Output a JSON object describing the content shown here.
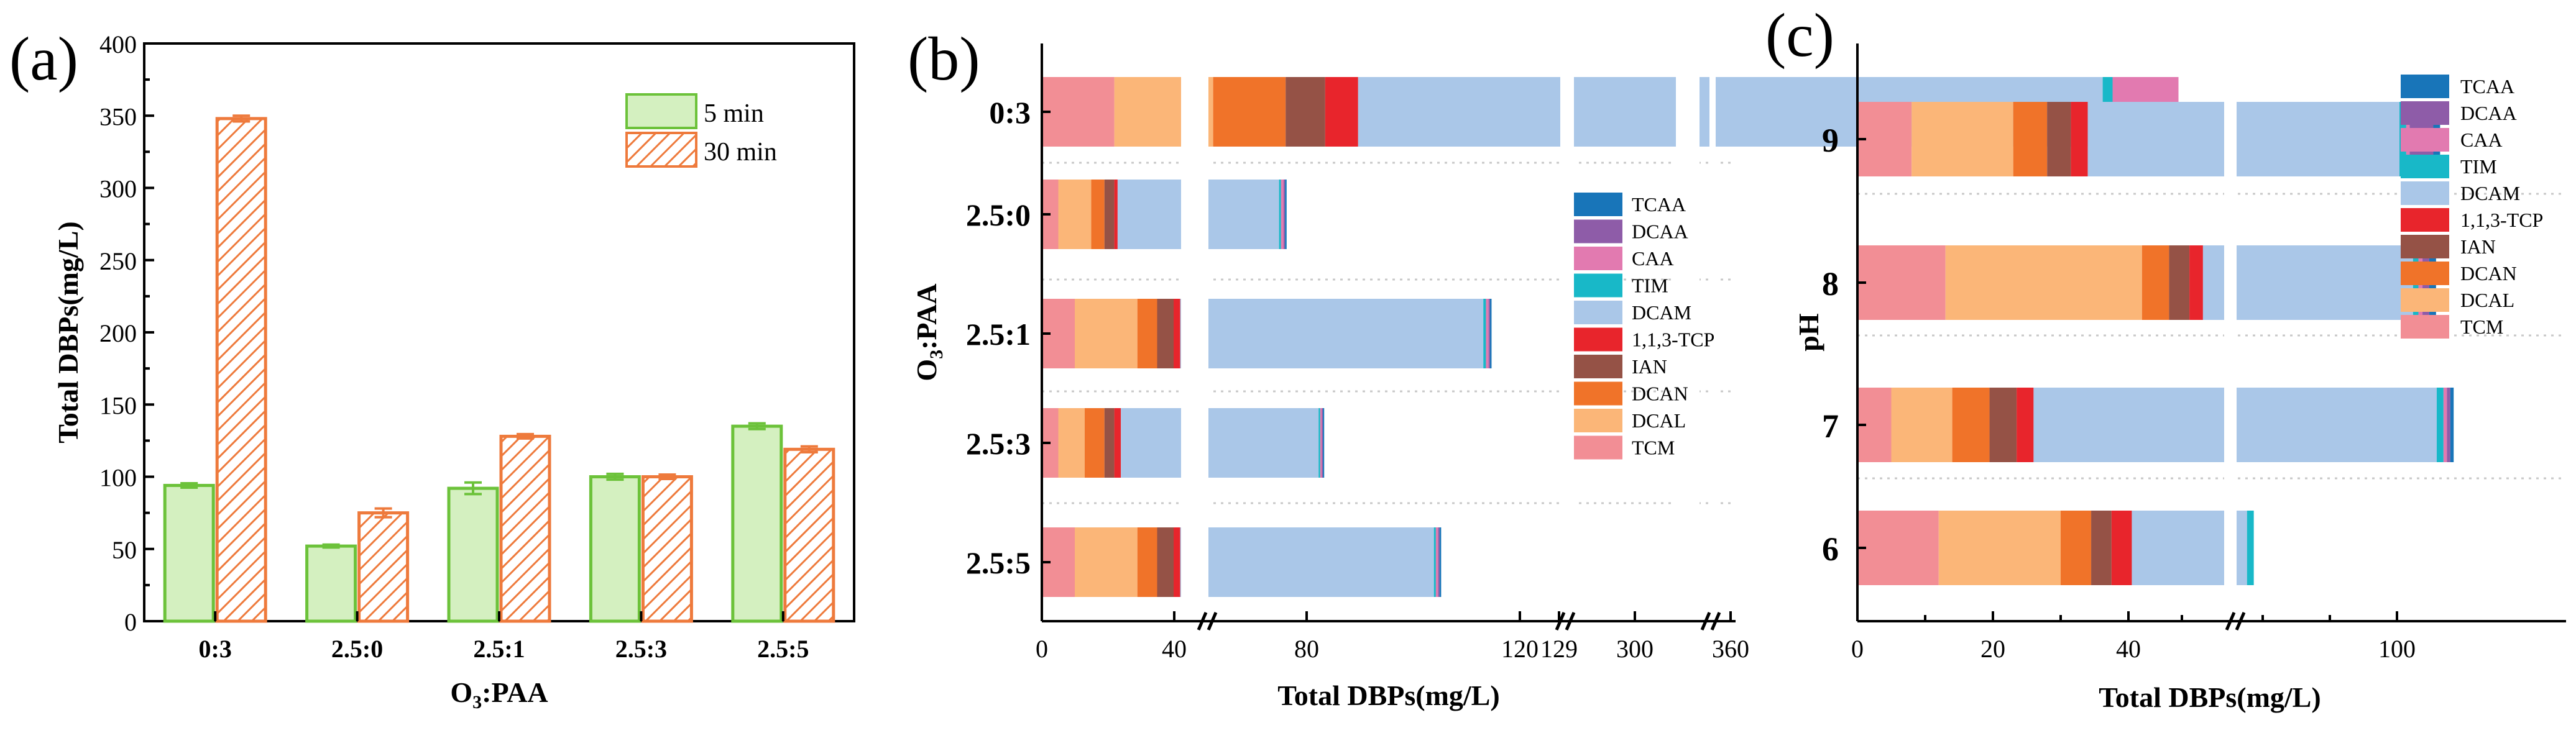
{
  "chart_data": [
    {
      "panel": "a",
      "type": "bar",
      "panel_label": "(a)",
      "title": "",
      "xlabel": "O3:PAA",
      "ylabel": "Total DBPs(mg/L)",
      "categories": [
        "0:3",
        "2.5:0",
        "2.5:1",
        "2.5:3",
        "2.5:5"
      ],
      "ylim": [
        0,
        400
      ],
      "yticks": [
        "0",
        "50",
        "100",
        "150",
        "200",
        "250",
        "300",
        "350",
        "400"
      ],
      "legend_position": "top-right",
      "series": [
        {
          "name": "5 min",
          "values": [
            94,
            52,
            92,
            100,
            135
          ],
          "errors": [
            1.5,
            1,
            4,
            2,
            2
          ],
          "color": "#d4f0c0",
          "edge": "#6cc23a",
          "hatch": false
        },
        {
          "name": "30 min",
          "values": [
            348,
            75,
            128,
            100,
            119
          ],
          "errors": [
            2,
            3,
            1.5,
            1.5,
            2
          ],
          "color": "#ffffff",
          "edge": "#ee7a3c",
          "hatch": true
        }
      ]
    },
    {
      "panel": "b",
      "type": "stacked-bar-horizontal",
      "panel_label": "(b)",
      "xlabel": "Total DBPs(mg/L)",
      "ylabel": "O3:PAA",
      "categories": [
        "0:3",
        "2.5:0",
        "2.5:1",
        "2.5:3",
        "2.5:5"
      ],
      "xticks": [
        "0",
        "40",
        "80",
        "120",
        "129",
        "300",
        "360"
      ],
      "axis_breaks": [
        [
          40,
          45
        ],
        [
          129,
          129
        ],
        [
          129,
          300
        ],
        [
          300,
          322
        ],
        [
          328,
          355
        ]
      ],
      "legend_position": "right",
      "species": [
        "TCM",
        "DCAL",
        "DCAN",
        "IAN",
        "1,1,3-TCP",
        "DCAM",
        "TIM",
        "CAA",
        "DCAA",
        "TCAA"
      ],
      "colors": [
        "#f28e95",
        "#fbb678",
        "#f07329",
        "#955246",
        "#e8252c",
        "#aac7e8",
        "#18b8c8",
        "#e27ab0",
        "#8e5ca8",
        "#1875b9"
      ],
      "series": [
        {
          "name": "TCM",
          "values": [
            22,
            5,
            10,
            5,
            10
          ]
        },
        {
          "name": "DCAL",
          "values": [
            30,
            10,
            19,
            8,
            19
          ]
        },
        {
          "name": "DCAN",
          "values": [
            22,
            4,
            6,
            6,
            6
          ]
        },
        {
          "name": "IAN",
          "values": [
            12,
            3,
            5,
            3,
            5
          ]
        },
        {
          "name": "1,1,3-TCP",
          "values": [
            10,
            1,
            2,
            2,
            2
          ]
        },
        {
          "name": "DCAM",
          "values": [
            226,
            49,
            92,
            60,
            77
          ]
        },
        {
          "name": "TIM",
          "values": [
            3,
            0.6,
            0.8,
            0.5,
            0.6
          ]
        },
        {
          "name": "CAA",
          "values": [
            20,
            0.8,
            0.8,
            0.5,
            0.7
          ]
        },
        {
          "name": "DCAA",
          "values": [
            0,
            0.4,
            0.4,
            0.3,
            0.4
          ]
        },
        {
          "name": "TCAA",
          "values": [
            0,
            0.5,
            0.5,
            0.4,
            0.5
          ]
        }
      ]
    },
    {
      "panel": "c",
      "type": "stacked-bar-horizontal",
      "panel_label": "(c)",
      "xlabel": "Total DBPs(mg/L)",
      "ylabel": "pH",
      "categories": [
        "9",
        "8",
        "7",
        "6"
      ],
      "xticks": [
        "0",
        "20",
        "40",
        "100"
      ],
      "axis_breaks": [
        [
          50,
          55
        ]
      ],
      "legend_position": "right",
      "species": [
        "TCAA",
        "DCAA",
        "CAA",
        "TIM",
        "DCAM",
        "1,1,3-TCP",
        "IAN",
        "DCAN",
        "DCAL",
        "TCM"
      ],
      "colors": [
        "#1875b9",
        "#8e5ca8",
        "#e27ab0",
        "#18b8c8",
        "#aac7e8",
        "#e8252c",
        "#955246",
        "#f07329",
        "#fbb678",
        "#f28e95"
      ],
      "series": [
        {
          "name": "TCM",
          "values": [
            8,
            13,
            5,
            12
          ]
        },
        {
          "name": "DCAL",
          "values": [
            15,
            29,
            9,
            18
          ]
        },
        {
          "name": "DCAN",
          "values": [
            5,
            4,
            5.5,
            4.5
          ]
        },
        {
          "name": "IAN",
          "values": [
            3.5,
            3,
            4,
            3
          ]
        },
        {
          "name": "1,1,3-TCP",
          "values": [
            2.5,
            2,
            2.5,
            3
          ]
        },
        {
          "name": "DCAM",
          "values": [
            46,
            31,
            59.5,
            17
          ]
        },
        {
          "name": "TIM",
          "values": [
            1,
            0.8,
            1,
            1
          ]
        },
        {
          "name": "CAA",
          "values": [
            0.5,
            0.6,
            0.5,
            0
          ]
        },
        {
          "name": "DCAA",
          "values": [
            3.5,
            1,
            0.5,
            0
          ]
        },
        {
          "name": "TCAA",
          "values": [
            1,
            1,
            0.5,
            0
          ]
        }
      ]
    }
  ]
}
